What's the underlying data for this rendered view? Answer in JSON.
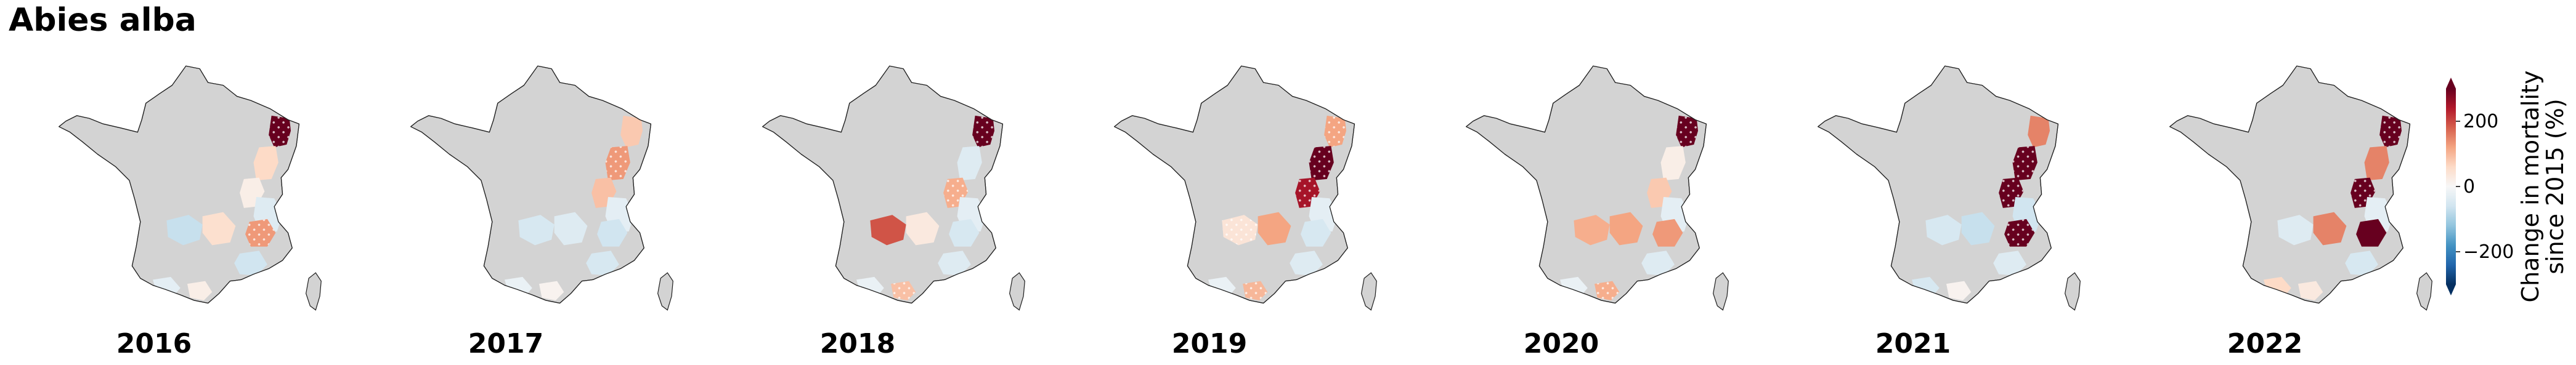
{
  "title": "Abies alba",
  "colors": {
    "land": "#d3d3d3",
    "border": "#222222",
    "hatch": "#ffffff",
    "scale": [
      "#053061",
      "#2166ac",
      "#4393c3",
      "#92c5de",
      "#d1e5f0",
      "#f7f7f7",
      "#fddbc7",
      "#f4a582",
      "#d6604d",
      "#b2182b",
      "#67001f"
    ]
  },
  "colorbar": {
    "label_line1": "Change in mortality",
    "label_line2": "since 2015 (%)",
    "range": [
      -300,
      300
    ],
    "extend": "both",
    "ticks": [
      {
        "value": 200,
        "label": "200"
      },
      {
        "value": 0,
        "label": "0"
      },
      {
        "value": -200,
        "label": "−200"
      }
    ]
  },
  "panels": [
    {
      "year": "2016",
      "regions": [
        {
          "id": "vosges-north",
          "value": 320,
          "hatched": true
        },
        {
          "id": "vosges-south",
          "value": 60,
          "hatched": false
        },
        {
          "id": "jura-north",
          "value": 20,
          "hatched": false
        },
        {
          "id": "jura-south",
          "value": -40,
          "hatched": false
        },
        {
          "id": "massif-central-west",
          "value": -70,
          "hatched": false
        },
        {
          "id": "massif-central-east",
          "value": 50,
          "hatched": false
        },
        {
          "id": "alps-north",
          "value": 130,
          "hatched": true
        },
        {
          "id": "alps-south",
          "value": -60,
          "hatched": false
        },
        {
          "id": "pyrenees-west",
          "value": -30,
          "hatched": false
        },
        {
          "id": "pyrenees-east",
          "value": 20,
          "hatched": false
        }
      ]
    },
    {
      "year": "2017",
      "regions": [
        {
          "id": "vosges-north",
          "value": 80,
          "hatched": false
        },
        {
          "id": "vosges-south",
          "value": 130,
          "hatched": true
        },
        {
          "id": "jura-north",
          "value": 90,
          "hatched": false
        },
        {
          "id": "jura-south",
          "value": -30,
          "hatched": false
        },
        {
          "id": "massif-central-west",
          "value": -50,
          "hatched": false
        },
        {
          "id": "massif-central-east",
          "value": -40,
          "hatched": false
        },
        {
          "id": "alps-north",
          "value": -60,
          "hatched": false
        },
        {
          "id": "alps-south",
          "value": -50,
          "hatched": false
        },
        {
          "id": "pyrenees-west",
          "value": -20,
          "hatched": false
        },
        {
          "id": "pyrenees-east",
          "value": 10,
          "hatched": false
        }
      ]
    },
    {
      "year": "2018",
      "regions": [
        {
          "id": "vosges-north",
          "value": 330,
          "hatched": true
        },
        {
          "id": "vosges-south",
          "value": -40,
          "hatched": false
        },
        {
          "id": "jura-north",
          "value": 110,
          "hatched": true
        },
        {
          "id": "jura-south",
          "value": -30,
          "hatched": false
        },
        {
          "id": "massif-central-west",
          "value": 190,
          "hatched": false
        },
        {
          "id": "massif-central-east",
          "value": 30,
          "hatched": false
        },
        {
          "id": "alps-north",
          "value": -50,
          "hatched": false
        },
        {
          "id": "alps-south",
          "value": -40,
          "hatched": false
        },
        {
          "id": "pyrenees-west",
          "value": -20,
          "hatched": false
        },
        {
          "id": "pyrenees-east",
          "value": 90,
          "hatched": true
        }
      ]
    },
    {
      "year": "2019",
      "regions": [
        {
          "id": "vosges-north",
          "value": 120,
          "hatched": true
        },
        {
          "id": "vosges-south",
          "value": 330,
          "hatched": true
        },
        {
          "id": "jura-north",
          "value": 250,
          "hatched": true
        },
        {
          "id": "jura-south",
          "value": -30,
          "hatched": false
        },
        {
          "id": "massif-central-west",
          "value": 40,
          "hatched": true
        },
        {
          "id": "massif-central-east",
          "value": 120,
          "hatched": false
        },
        {
          "id": "alps-north",
          "value": -50,
          "hatched": false
        },
        {
          "id": "alps-south",
          "value": -40,
          "hatched": false
        },
        {
          "id": "pyrenees-west",
          "value": -20,
          "hatched": false
        },
        {
          "id": "pyrenees-east",
          "value": 100,
          "hatched": true
        }
      ]
    },
    {
      "year": "2020",
      "regions": [
        {
          "id": "vosges-north",
          "value": 340,
          "hatched": true
        },
        {
          "id": "vosges-south",
          "value": 20,
          "hatched": false
        },
        {
          "id": "jura-north",
          "value": 80,
          "hatched": false
        },
        {
          "id": "jura-south",
          "value": -30,
          "hatched": false
        },
        {
          "id": "massif-central-west",
          "value": 110,
          "hatched": false
        },
        {
          "id": "massif-central-east",
          "value": 120,
          "hatched": false
        },
        {
          "id": "alps-north",
          "value": 130,
          "hatched": false
        },
        {
          "id": "alps-south",
          "value": -40,
          "hatched": false
        },
        {
          "id": "pyrenees-west",
          "value": -20,
          "hatched": false
        },
        {
          "id": "pyrenees-east",
          "value": 110,
          "hatched": true
        }
      ]
    },
    {
      "year": "2021",
      "regions": [
        {
          "id": "vosges-north",
          "value": 150,
          "hatched": false
        },
        {
          "id": "vosges-south",
          "value": 300,
          "hatched": true
        },
        {
          "id": "jura-north",
          "value": 330,
          "hatched": true
        },
        {
          "id": "jura-south",
          "value": -60,
          "hatched": false
        },
        {
          "id": "massif-central-west",
          "value": -50,
          "hatched": false
        },
        {
          "id": "massif-central-east",
          "value": -70,
          "hatched": false
        },
        {
          "id": "alps-north",
          "value": 340,
          "hatched": true
        },
        {
          "id": "alps-south",
          "value": -40,
          "hatched": false
        },
        {
          "id": "pyrenees-west",
          "value": -50,
          "hatched": false
        },
        {
          "id": "pyrenees-east",
          "value": 10,
          "hatched": false
        }
      ]
    },
    {
      "year": "2022",
      "regions": [
        {
          "id": "vosges-north",
          "value": 340,
          "hatched": true
        },
        {
          "id": "vosges-south",
          "value": 150,
          "hatched": false
        },
        {
          "id": "jura-north",
          "value": 320,
          "hatched": true
        },
        {
          "id": "jura-south",
          "value": -30,
          "hatched": false
        },
        {
          "id": "massif-central-west",
          "value": -40,
          "hatched": false
        },
        {
          "id": "massif-central-east",
          "value": 150,
          "hatched": false
        },
        {
          "id": "alps-north",
          "value": 330,
          "hatched": false
        },
        {
          "id": "alps-south",
          "value": -50,
          "hatched": false
        },
        {
          "id": "pyrenees-west",
          "value": 60,
          "hatched": false
        },
        {
          "id": "pyrenees-east",
          "value": 30,
          "hatched": false
        }
      ]
    }
  ]
}
